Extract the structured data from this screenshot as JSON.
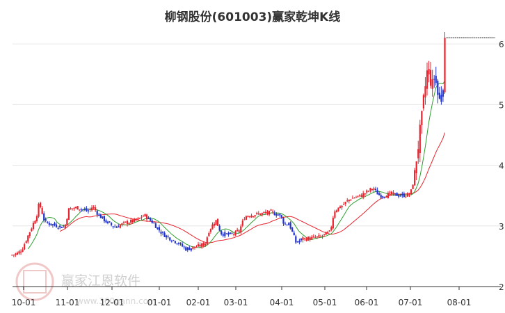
{
  "chart_data": {
    "type": "candlestick",
    "title": "柳钢股份(601003)赢家乾坤K线",
    "xlabel": "",
    "ylabel": "",
    "ylim": [
      2,
      6.15
    ],
    "y_ticks": [
      "2",
      "3",
      "4",
      "5",
      "6"
    ],
    "x_ticks": [
      "10-01",
      "11-01",
      "12-01",
      "01-01",
      "02-01",
      "03-01",
      "04-01",
      "05-01",
      "06-01",
      "07-01",
      "08-01"
    ],
    "grid": true,
    "colors": {
      "up": "#e8232d",
      "down": "#2233cc",
      "ma_short": "#2e9e2e",
      "ma_long": "#e8232d",
      "grid": "#e6e6e6",
      "axis": "#333333"
    },
    "price_path": [
      [
        "09-23",
        2.52
      ],
      [
        "09-27",
        2.55
      ],
      [
        "09-30",
        2.62
      ],
      [
        "10-08",
        3.05
      ],
      [
        "10-10",
        3.15
      ],
      [
        "10-12",
        3.38
      ],
      [
        "10-16",
        3.06
      ],
      [
        "10-25",
        3.0
      ],
      [
        "10-30",
        2.98
      ],
      [
        "11-02",
        3.28
      ],
      [
        "11-08",
        3.3
      ],
      [
        "11-15",
        3.24
      ],
      [
        "11-18",
        3.32
      ],
      [
        "11-22",
        3.18
      ],
      [
        "11-28",
        3.05
      ],
      [
        "12-03",
        2.98
      ],
      [
        "12-10",
        3.05
      ],
      [
        "12-18",
        3.1
      ],
      [
        "12-22",
        3.18
      ],
      [
        "12-28",
        3.05
      ],
      [
        "01-03",
        2.88
      ],
      [
        "01-09",
        2.8
      ],
      [
        "01-16",
        2.72
      ],
      [
        "01-22",
        2.62
      ],
      [
        "01-30",
        2.65
      ],
      [
        "02-06",
        2.7
      ],
      [
        "02-09",
        2.92
      ],
      [
        "02-14",
        3.1
      ],
      [
        "02-18",
        2.88
      ],
      [
        "02-24",
        2.85
      ],
      [
        "03-03",
        2.9
      ],
      [
        "03-07",
        3.15
      ],
      [
        "03-10",
        3.18
      ],
      [
        "03-18",
        3.2
      ],
      [
        "03-25",
        3.22
      ],
      [
        "03-31",
        3.18
      ],
      [
        "04-03",
        3.02
      ],
      [
        "04-06",
        3.05
      ],
      [
        "04-11",
        2.72
      ],
      [
        "04-15",
        2.78
      ],
      [
        "04-22",
        2.8
      ],
      [
        "04-28",
        2.82
      ],
      [
        "05-05",
        2.9
      ],
      [
        "05-08",
        3.25
      ],
      [
        "05-13",
        3.32
      ],
      [
        "05-20",
        3.45
      ],
      [
        "05-28",
        3.5
      ],
      [
        "06-05",
        3.62
      ],
      [
        "06-10",
        3.5
      ],
      [
        "06-18",
        3.52
      ],
      [
        "06-25",
        3.5
      ],
      [
        "07-01",
        3.52
      ],
      [
        "07-03",
        3.75
      ],
      [
        "07-05",
        4.15
      ],
      [
        "07-08",
        4.7
      ],
      [
        "07-10",
        5.2
      ],
      [
        "07-12",
        5.6
      ],
      [
        "07-15",
        5.3
      ],
      [
        "07-17",
        5.55
      ],
      [
        "07-19",
        5.0
      ],
      [
        "07-22",
        5.4
      ],
      [
        "07-23",
        6.1
      ]
    ],
    "last_price_line": 6.1,
    "series": []
  },
  "watermark": {
    "brand": "赢家江恩软件",
    "url": "www.360gann.com",
    "seal_text": "赢家江恩"
  }
}
